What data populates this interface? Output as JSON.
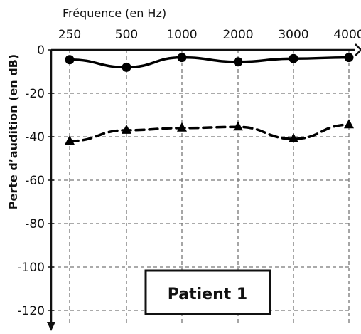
{
  "chart_data": {
    "type": "line",
    "xlabel": "Fréquence (en Hz)",
    "ylabel": "Perte d’audition (en dB)",
    "categories": [
      "250",
      "500",
      "1000",
      "2000",
      "3000",
      "4000"
    ],
    "ylim": [
      -125,
      0
    ],
    "yticks": [
      "0",
      "-20",
      "-40",
      "-60",
      "-80",
      "-100",
      "-120"
    ],
    "ytick_values": [
      0,
      -20,
      -40,
      -60,
      -80,
      -100,
      -120
    ],
    "grid": true,
    "x_axis_position": "top",
    "series": [
      {
        "values": [
          -4.5,
          -8,
          -3.5,
          -5.5,
          -4,
          -3.5
        ],
        "style": "solid",
        "marker": "circle",
        "color": "#000000"
      },
      {
        "values": [
          -42,
          -37,
          -36,
          -35.5,
          -41,
          -34.5
        ],
        "style": "dashed",
        "marker": "triangle",
        "color": "#000000"
      }
    ],
    "annotation": "Patient 1"
  }
}
